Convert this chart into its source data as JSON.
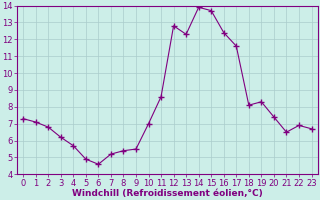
{
  "x": [
    0,
    1,
    2,
    3,
    4,
    5,
    6,
    7,
    8,
    9,
    10,
    11,
    12,
    13,
    14,
    15,
    16,
    17,
    18,
    19,
    20,
    21,
    22,
    23
  ],
  "y": [
    7.3,
    7.1,
    6.8,
    6.2,
    5.7,
    4.9,
    4.6,
    5.2,
    5.4,
    5.5,
    7.0,
    8.6,
    12.8,
    12.3,
    13.9,
    13.7,
    12.4,
    11.6,
    8.1,
    8.3,
    7.4,
    6.5,
    6.9,
    6.7
  ],
  "line_color": "#800080",
  "marker": "+",
  "marker_size": 4,
  "bg_color": "#cceee8",
  "grid_color": "#aacccc",
  "ylim": [
    4,
    14
  ],
  "xlim": [
    -0.5,
    23.5
  ],
  "yticks": [
    4,
    5,
    6,
    7,
    8,
    9,
    10,
    11,
    12,
    13,
    14
  ],
  "xtick_labels": [
    "0",
    "1",
    "2",
    "3",
    "4",
    "5",
    "6",
    "7",
    "8",
    "9",
    "10",
    "11",
    "12",
    "13",
    "14",
    "15",
    "16",
    "17",
    "18",
    "19",
    "20",
    "21",
    "22",
    "23"
  ],
  "xlabel": "Windchill (Refroidissement éolien,°C)",
  "xlabel_color": "#800080",
  "tick_color": "#800080",
  "axis_color": "#800080",
  "label_fontsize": 6.5,
  "tick_fontsize": 6.0
}
